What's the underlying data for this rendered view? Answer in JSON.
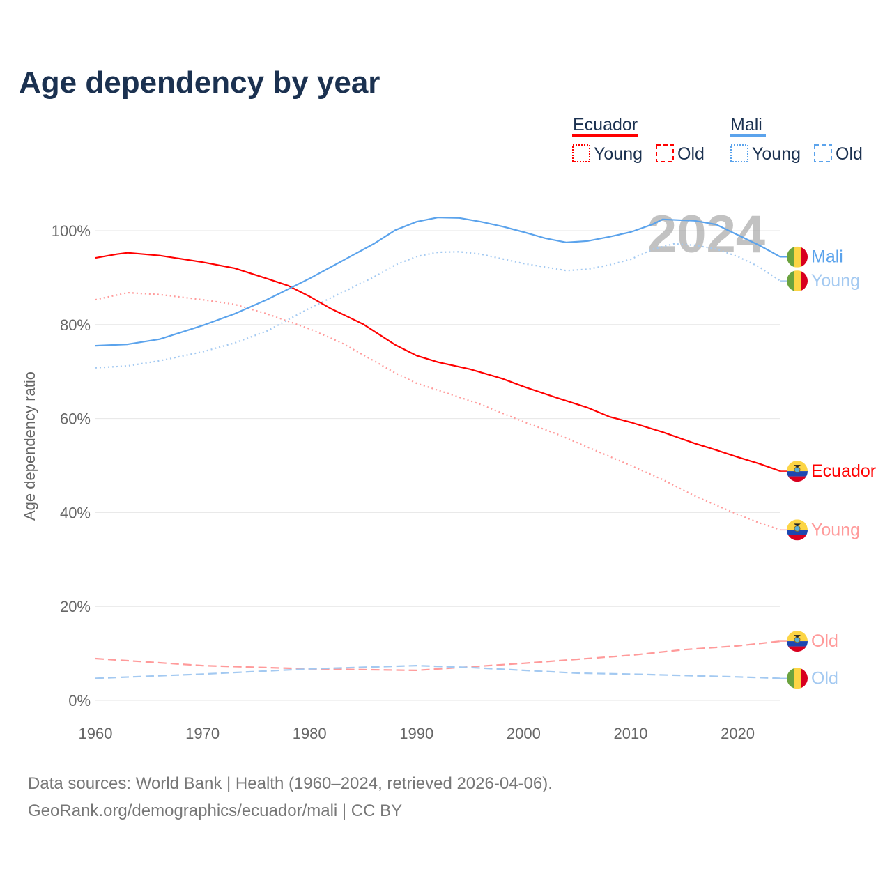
{
  "chart_data": {
    "type": "line",
    "title": "Age dependency by year",
    "xlabel": "",
    "ylabel": "Age dependency ratio",
    "xlim": [
      1960,
      2024
    ],
    "ylim": [
      0,
      100
    ],
    "x_ticks": [
      "1960",
      "1970",
      "1980",
      "1990",
      "2000",
      "2010",
      "2020"
    ],
    "y_ticks": [
      "0%",
      "20%",
      "40%",
      "60%",
      "80%",
      "100%"
    ],
    "grid": true,
    "watermark_year": "2024",
    "legend": {
      "placement": "top-right",
      "groups": [
        {
          "country": "Ecuador",
          "items": [
            "Young",
            "Old"
          ]
        },
        {
          "country": "Mali",
          "items": [
            "Young",
            "Old"
          ]
        }
      ]
    },
    "series": [
      {
        "name": "Ecuador",
        "end_label": "Ecuador",
        "color": "#ff0000",
        "style": "solid",
        "flag": "ecuador",
        "x": [
          1960,
          1962,
          1963,
          1966,
          1970,
          1973,
          1976,
          1978,
          1980,
          1982,
          1985,
          1988,
          1990,
          1992,
          1995,
          1998,
          2000,
          2003,
          2006,
          2008,
          2010,
          2013,
          2016,
          2018,
          2020,
          2022,
          2024
        ],
        "y": [
          94.2,
          95,
          95.3,
          94.7,
          93.3,
          92,
          89.8,
          88.3,
          86,
          83.4,
          80.1,
          75.7,
          73.4,
          72,
          70.5,
          68.5,
          66.8,
          64.5,
          62.3,
          60.4,
          59.2,
          57.1,
          54.7,
          53.3,
          51.8,
          50.4,
          48.8
        ]
      },
      {
        "name": "Ecuador Young",
        "end_label": "Young",
        "color": "#ff9a9a",
        "style": "dotted",
        "flag": "ecuador",
        "x": [
          1960,
          1963,
          1966,
          1970,
          1973,
          1976,
          1980,
          1983,
          1986,
          1988,
          1990,
          1993,
          1996,
          2000,
          2003,
          2006,
          2010,
          2013,
          2016,
          2020,
          2022,
          2024
        ],
        "y": [
          85.3,
          86.8,
          86.4,
          85.3,
          84.3,
          82.3,
          79.1,
          76.1,
          72.3,
          69.7,
          67.5,
          65.3,
          63,
          59.3,
          56.8,
          53.9,
          50,
          47,
          43.5,
          39.6,
          37.8,
          36.3
        ]
      },
      {
        "name": "Ecuador Old",
        "end_label": "Old",
        "color": "#ff9a9a",
        "style": "dashed",
        "flag": "ecuador",
        "x": [
          1960,
          1970,
          1980,
          1990,
          2000,
          2010,
          2015,
          2020,
          2024
        ],
        "y": [
          8.9,
          7.4,
          6.7,
          6.4,
          7.9,
          9.6,
          10.8,
          11.6,
          12.6
        ]
      },
      {
        "name": "Mali",
        "end_label": "Mali",
        "color": "#5ba3ec",
        "style": "solid",
        "flag": "mali",
        "x": [
          1960,
          1963,
          1966,
          1970,
          1973,
          1976,
          1980,
          1983,
          1986,
          1988,
          1990,
          1992,
          1994,
          1996,
          1998,
          2000,
          2002,
          2004,
          2006,
          2008,
          2010,
          2012,
          2013,
          2016,
          2018,
          2020,
          2022,
          2024
        ],
        "y": [
          75.5,
          75.8,
          76.9,
          79.8,
          82.3,
          85.3,
          89.8,
          93.5,
          97.2,
          100.1,
          101.9,
          102.8,
          102.7,
          101.9,
          100.9,
          99.7,
          98.4,
          97.5,
          97.8,
          98.7,
          99.7,
          101.3,
          102.4,
          102.1,
          101.3,
          99.1,
          96.9,
          94.4
        ]
      },
      {
        "name": "Mali Young",
        "end_label": "Young",
        "color": "#a3c9f1",
        "style": "dotted",
        "flag": "mali",
        "x": [
          1960,
          1963,
          1966,
          1970,
          1973,
          1976,
          1980,
          1983,
          1986,
          1988,
          1990,
          1992,
          1994,
          1996,
          2000,
          2004,
          2006,
          2008,
          2010,
          2012,
          2014,
          2016,
          2018,
          2020,
          2022,
          2024
        ],
        "y": [
          70.8,
          71.2,
          72.3,
          74.2,
          76.1,
          78.6,
          83.5,
          86.8,
          90.1,
          92.7,
          94.5,
          95.4,
          95.5,
          95,
          93,
          91.5,
          91.8,
          92.7,
          93.9,
          96,
          97.2,
          96.9,
          96.1,
          94.5,
          92.3,
          89.3
        ]
      },
      {
        "name": "Mali Old",
        "end_label": "Old",
        "color": "#a3c9f1",
        "style": "dashed",
        "flag": "mali",
        "x": [
          1960,
          1970,
          1980,
          1990,
          1995,
          2000,
          2005,
          2010,
          2015,
          2020,
          2024
        ],
        "y": [
          4.7,
          5.6,
          6.7,
          7.4,
          7,
          6.4,
          5.8,
          5.6,
          5.3,
          5,
          4.7
        ]
      }
    ],
    "colors": {
      "ecuador": "#ff0000",
      "mali": "#5ba3ec",
      "title": "#1b3150",
      "axis_text": "#666666"
    }
  },
  "footer": {
    "line1": "Data sources: World Bank | Health (1960–2024, retrieved 2026-04-06).",
    "line2": "GeoRank.org/demographics/ecuador/mali | CC BY"
  }
}
